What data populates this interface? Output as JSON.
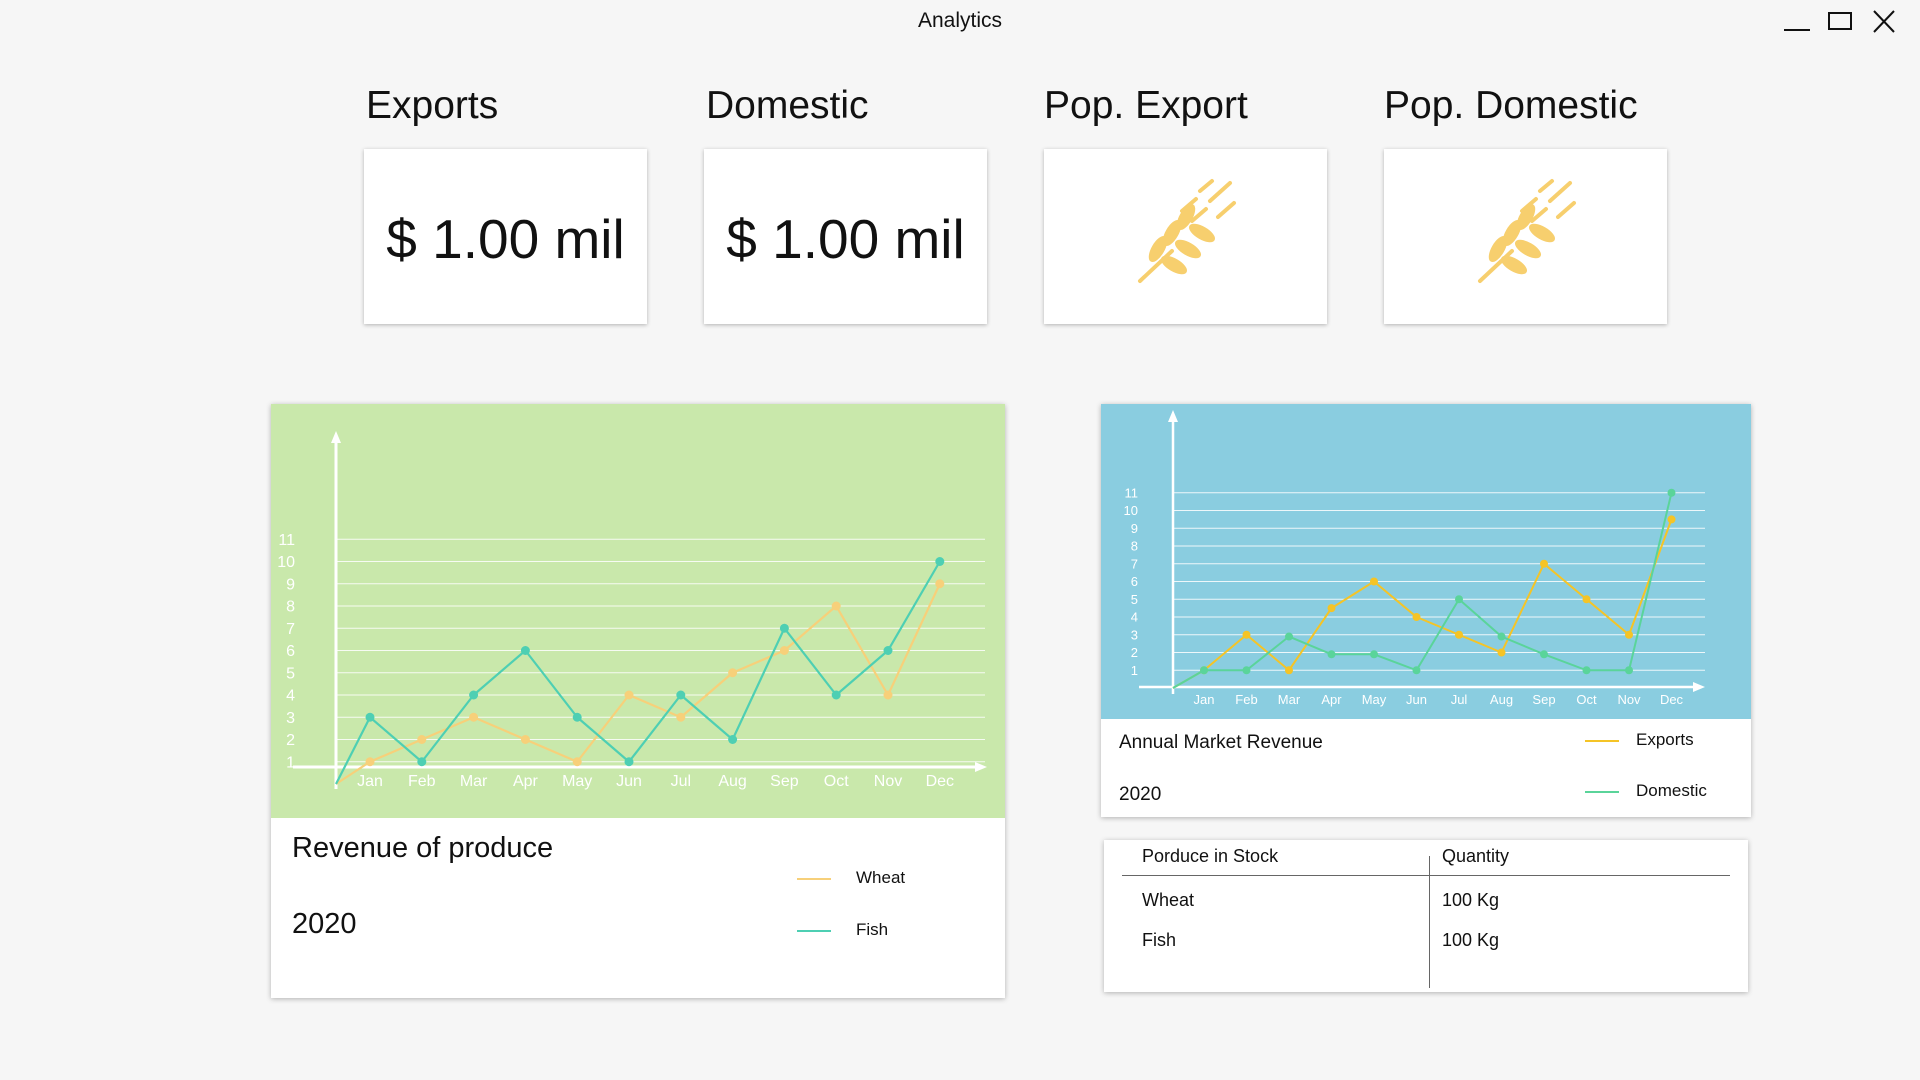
{
  "window": {
    "title": "Analytics",
    "controls": [
      "minimize-icon",
      "maximize-icon",
      "close-icon"
    ]
  },
  "kpis": [
    {
      "label": "Exports",
      "value": "$ 1.00 mil"
    },
    {
      "label": "Domestic",
      "value": "$ 1.00 mil"
    },
    {
      "label": "Pop. Export",
      "icon": "wheat-icon"
    },
    {
      "label": "Pop. Domestic",
      "icon": "wheat-icon"
    }
  ],
  "colors": {
    "wheat_icon": "#f7cf6e",
    "produce_bg": "#c9e8ab",
    "market_bg": "#8acde0",
    "wheat_line": "#f7d07a",
    "fish_line": "#4ecfb3",
    "exports_line": "#f5c426",
    "domestic_line": "#5ad49a"
  },
  "produce_chart": {
    "caption_title": "Revenue of produce",
    "caption_year": "2020",
    "legend": [
      "Wheat",
      "Fish"
    ]
  },
  "market_chart": {
    "caption_title": "Annual Market Revenue",
    "caption_year": "2020",
    "legend": [
      "Exports",
      "Domestic"
    ]
  },
  "stock_table": {
    "headers": [
      "Porduce in Stock",
      "Quantity"
    ],
    "rows": [
      [
        "Wheat",
        "100 Kg"
      ],
      [
        "Fish",
        "100 Kg"
      ]
    ]
  },
  "chart_data": [
    {
      "type": "line",
      "title": "Revenue of produce",
      "categories": [
        "Jan",
        "Feb",
        "Mar",
        "Apr",
        "May",
        "Jun",
        "Jul",
        "Aug",
        "Sep",
        "Oct",
        "Nov",
        "Dec"
      ],
      "yticks": [
        1,
        2,
        3,
        4,
        5,
        6,
        7,
        8,
        9,
        10,
        11
      ],
      "ylim": [
        0,
        12
      ],
      "grid": true,
      "legend_position": "bottom-right",
      "series": [
        {
          "name": "Wheat",
          "values": [
            1,
            2,
            3,
            2,
            1,
            4,
            3,
            5,
            6,
            8,
            4,
            9
          ]
        },
        {
          "name": "Fish",
          "values": [
            3,
            1,
            4,
            6,
            3,
            1,
            4,
            2,
            7,
            4,
            6,
            10
          ]
        }
      ]
    },
    {
      "type": "line",
      "title": "Annual Market Revenue",
      "categories": [
        "Jan",
        "Feb",
        "Mar",
        "Apr",
        "May",
        "Jun",
        "Jul",
        "Aug",
        "Sep",
        "Oct",
        "Nov",
        "Dec"
      ],
      "yticks": [
        1,
        2,
        3,
        4,
        5,
        6,
        7,
        8,
        9,
        10,
        11
      ],
      "ylim": [
        0,
        12
      ],
      "grid": true,
      "legend_position": "bottom-right",
      "series": [
        {
          "name": "Exports",
          "values": [
            1,
            3,
            1,
            4.5,
            6,
            4,
            3,
            2,
            7,
            5,
            3,
            9.5
          ]
        },
        {
          "name": "Domestic",
          "values": [
            1,
            1,
            2.9,
            1.9,
            1.9,
            1,
            5,
            2.9,
            1.9,
            1,
            1,
            11
          ]
        }
      ]
    }
  ]
}
